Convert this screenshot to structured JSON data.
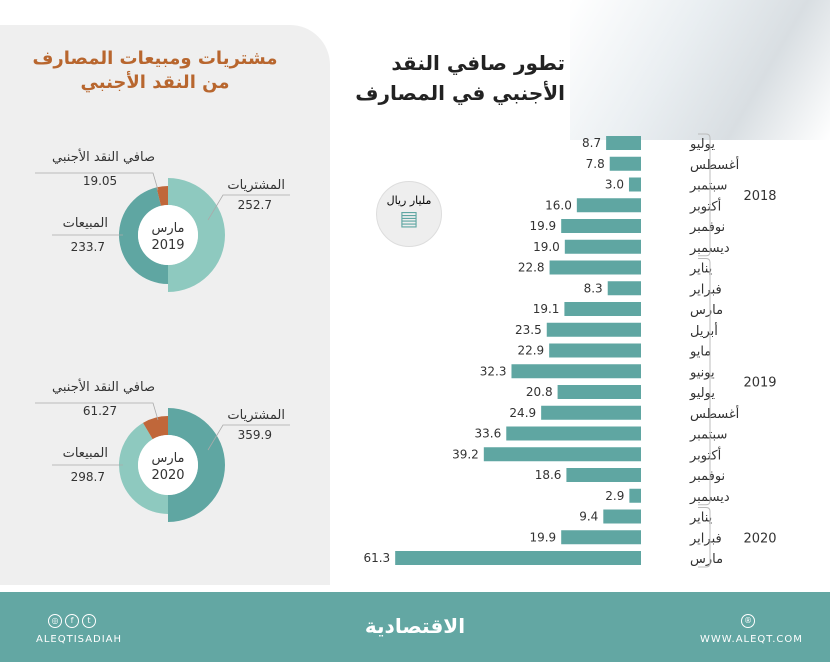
{
  "main_title": [
    "تطور صافي النقد",
    "الأجنبي في المصارف"
  ],
  "unit": "مليار ريال",
  "panel_title": [
    "مشتريات ومبيعات المصارف",
    "من النقد الأجنبي"
  ],
  "colors": {
    "bar": "#5fa6a2",
    "purchases_2019": "#8ec9bf",
    "sales_2019": "#5fa6a2",
    "net": "#c0673a",
    "footer": "#63a7a3",
    "title_accent": "#b8662e"
  },
  "chart_data": [
    {
      "type": "bar",
      "orientation": "horizontal",
      "title": "تطور صافي النقد الأجنبي في المصارف",
      "unit": "مليار ريال",
      "groups": [
        {
          "year": "2018",
          "count": 6
        },
        {
          "year": "2019",
          "count": 12
        },
        {
          "year": "2020",
          "count": 3
        }
      ],
      "categories": [
        "يوليو",
        "أغسطس",
        "سبتمبر",
        "أكتوبر",
        "نوفمبر",
        "ديسمبر",
        "يناير",
        "فبراير",
        "مارس",
        "أبريل",
        "مايو",
        "يونيو",
        "يوليو",
        "أغسطس",
        "سبتمبر",
        "أكتوبر",
        "نوفمبر",
        "ديسمبر",
        "يناير",
        "فبراير",
        "مارس"
      ],
      "values": [
        8.7,
        7.8,
        3.0,
        16.0,
        19.9,
        19.0,
        22.8,
        8.3,
        19.1,
        23.5,
        22.9,
        32.3,
        20.8,
        24.9,
        33.6,
        39.2,
        18.6,
        2.9,
        9.4,
        19.9,
        61.3
      ],
      "labels": [
        "8.7",
        "7.8",
        "3.0",
        "16.0",
        "19.9",
        "19.0",
        "22.8",
        "8.3",
        "19.1",
        "23.5",
        "22.9",
        "32.3",
        "20.8",
        "24.9",
        "33.6",
        "39.2",
        "18.6",
        "2.9",
        "9.4",
        "19.9",
        "61.3"
      ]
    },
    {
      "type": "pie",
      "variant": "donut",
      "center_label": [
        "مارس",
        "2019"
      ],
      "slices": [
        {
          "name": "المشتريات",
          "value": 252.7,
          "label": "252.7"
        },
        {
          "name": "المبيعات",
          "value": 233.7,
          "label": "233.7"
        },
        {
          "name": "صافي النقد الأجنبي",
          "value": 19.05,
          "label": "19.05"
        }
      ]
    },
    {
      "type": "pie",
      "variant": "donut",
      "center_label": [
        "مارس",
        "2020"
      ],
      "slices": [
        {
          "name": "المشتريات",
          "value": 359.9,
          "label": "359.9"
        },
        {
          "name": "المبيعات",
          "value": 298.7,
          "label": "298.7"
        },
        {
          "name": "صافي النقد الأجنبي",
          "value": 61.27,
          "label": "61.27"
        }
      ]
    }
  ],
  "footer": {
    "brand": "الاقتصادية",
    "social_handle": "ALEQTISADIAH",
    "website": "WWW.ALEQT.COM",
    "social_icons": [
      "instagram-icon",
      "facebook-icon",
      "twitter-icon"
    ],
    "web_icon": "globe-icon"
  }
}
